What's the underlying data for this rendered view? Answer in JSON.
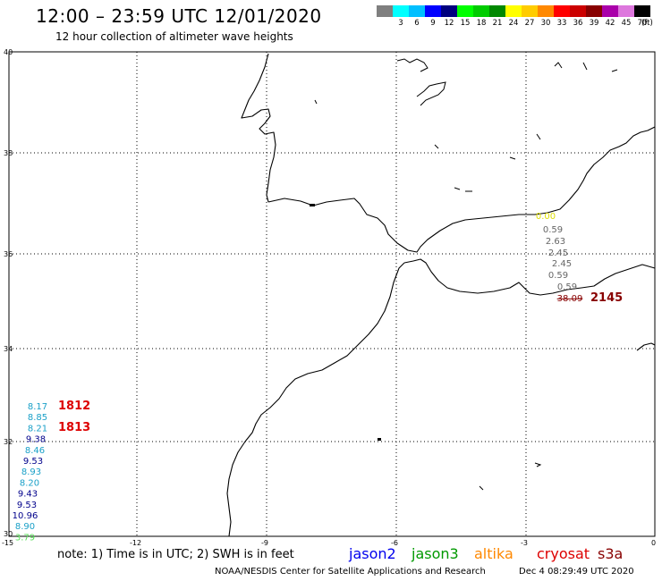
{
  "header": {
    "title": "12:00 – 23:59 UTC 12/01/2020",
    "subtitle": "12 hour collection of altimeter wave heights"
  },
  "legend": {
    "unit": "(ft)",
    "bins": [
      {
        "label": "",
        "color": "#7f7f7f"
      },
      {
        "label": "3",
        "color": "#00ffff"
      },
      {
        "label": "6",
        "color": "#00bfff"
      },
      {
        "label": "9",
        "color": "#0000ff"
      },
      {
        "label": "12",
        "color": "#00007f"
      },
      {
        "label": "15",
        "color": "#00ff00"
      },
      {
        "label": "18",
        "color": "#00cc00"
      },
      {
        "label": "21",
        "color": "#008800"
      },
      {
        "label": "24",
        "color": "#ffff00"
      },
      {
        "label": "27",
        "color": "#ffcc00"
      },
      {
        "label": "30",
        "color": "#ff8800"
      },
      {
        "label": "33",
        "color": "#ff0000"
      },
      {
        "label": "36",
        "color": "#cc0000"
      },
      {
        "label": "39",
        "color": "#880000"
      },
      {
        "label": "42",
        "color": "#aa00aa"
      },
      {
        "label": "45",
        "color": "#dd77dd"
      },
      {
        "label": "70",
        "color": "#000000"
      }
    ]
  },
  "axes": {
    "lon_ticks": [
      "-15",
      "-12",
      "-9",
      "-6",
      "-3",
      "0"
    ],
    "lat_ticks": [
      "30",
      "32",
      "34",
      "36",
      "38",
      "40"
    ]
  },
  "observations": {
    "atlantic": {
      "pass_labels": [
        {
          "text": "1812",
          "color": "#dd0000"
        },
        {
          "text": "1813",
          "color": "#dd0000"
        }
      ],
      "values": [
        {
          "text": "8.17",
          "color": "#1aa0c8"
        },
        {
          "text": "8.85",
          "color": "#1aa0c8"
        },
        {
          "text": "8.21",
          "color": "#1aa0c8"
        },
        {
          "text": "9.38",
          "color": "#00008b"
        },
        {
          "text": "8.46",
          "color": "#1aa0c8"
        },
        {
          "text": "9.53",
          "color": "#00008b"
        },
        {
          "text": "8.93",
          "color": "#1aa0c8"
        },
        {
          "text": "8.20",
          "color": "#1aa0c8"
        },
        {
          "text": "9.43",
          "color": "#00008b"
        },
        {
          "text": "9.53",
          "color": "#00008b"
        },
        {
          "text": "10.96",
          "color": "#00008b"
        },
        {
          "text": "8.90",
          "color": "#1aa0c8"
        },
        {
          "text": "3.79",
          "color": "#55dd55"
        }
      ]
    },
    "mediterranean": {
      "pass_label": {
        "text": "2145",
        "color": "#880000"
      },
      "values": [
        {
          "text": "0.00",
          "color": "#dddd00"
        },
        {
          "text": "0.59",
          "color": "#666666"
        },
        {
          "text": "2.63",
          "color": "#666666"
        },
        {
          "text": "2.45",
          "color": "#666666"
        },
        {
          "text": "2.45",
          "color": "#666666"
        },
        {
          "text": "0.59",
          "color": "#666666"
        },
        {
          "text": "0.59",
          "color": "#666666"
        },
        {
          "text": "38.09",
          "color": "#880000"
        }
      ]
    }
  },
  "footer": {
    "note": "note: 1) Time is in UTC; 2) SWH is in feet",
    "missions": [
      {
        "name": "jason2",
        "color": "#0000ee"
      },
      {
        "name": "jason3",
        "color": "#009900"
      },
      {
        "name": "altika",
        "color": "#ff8800"
      },
      {
        "name": "cryosat",
        "color": "#dd0000"
      },
      {
        "name": "s3a",
        "color": "#880000"
      }
    ],
    "credit": "NOAA/NESDIS Center for Satellite Applications and Research",
    "timestamp": "Dec  4 08:29:49 UTC 2020"
  }
}
